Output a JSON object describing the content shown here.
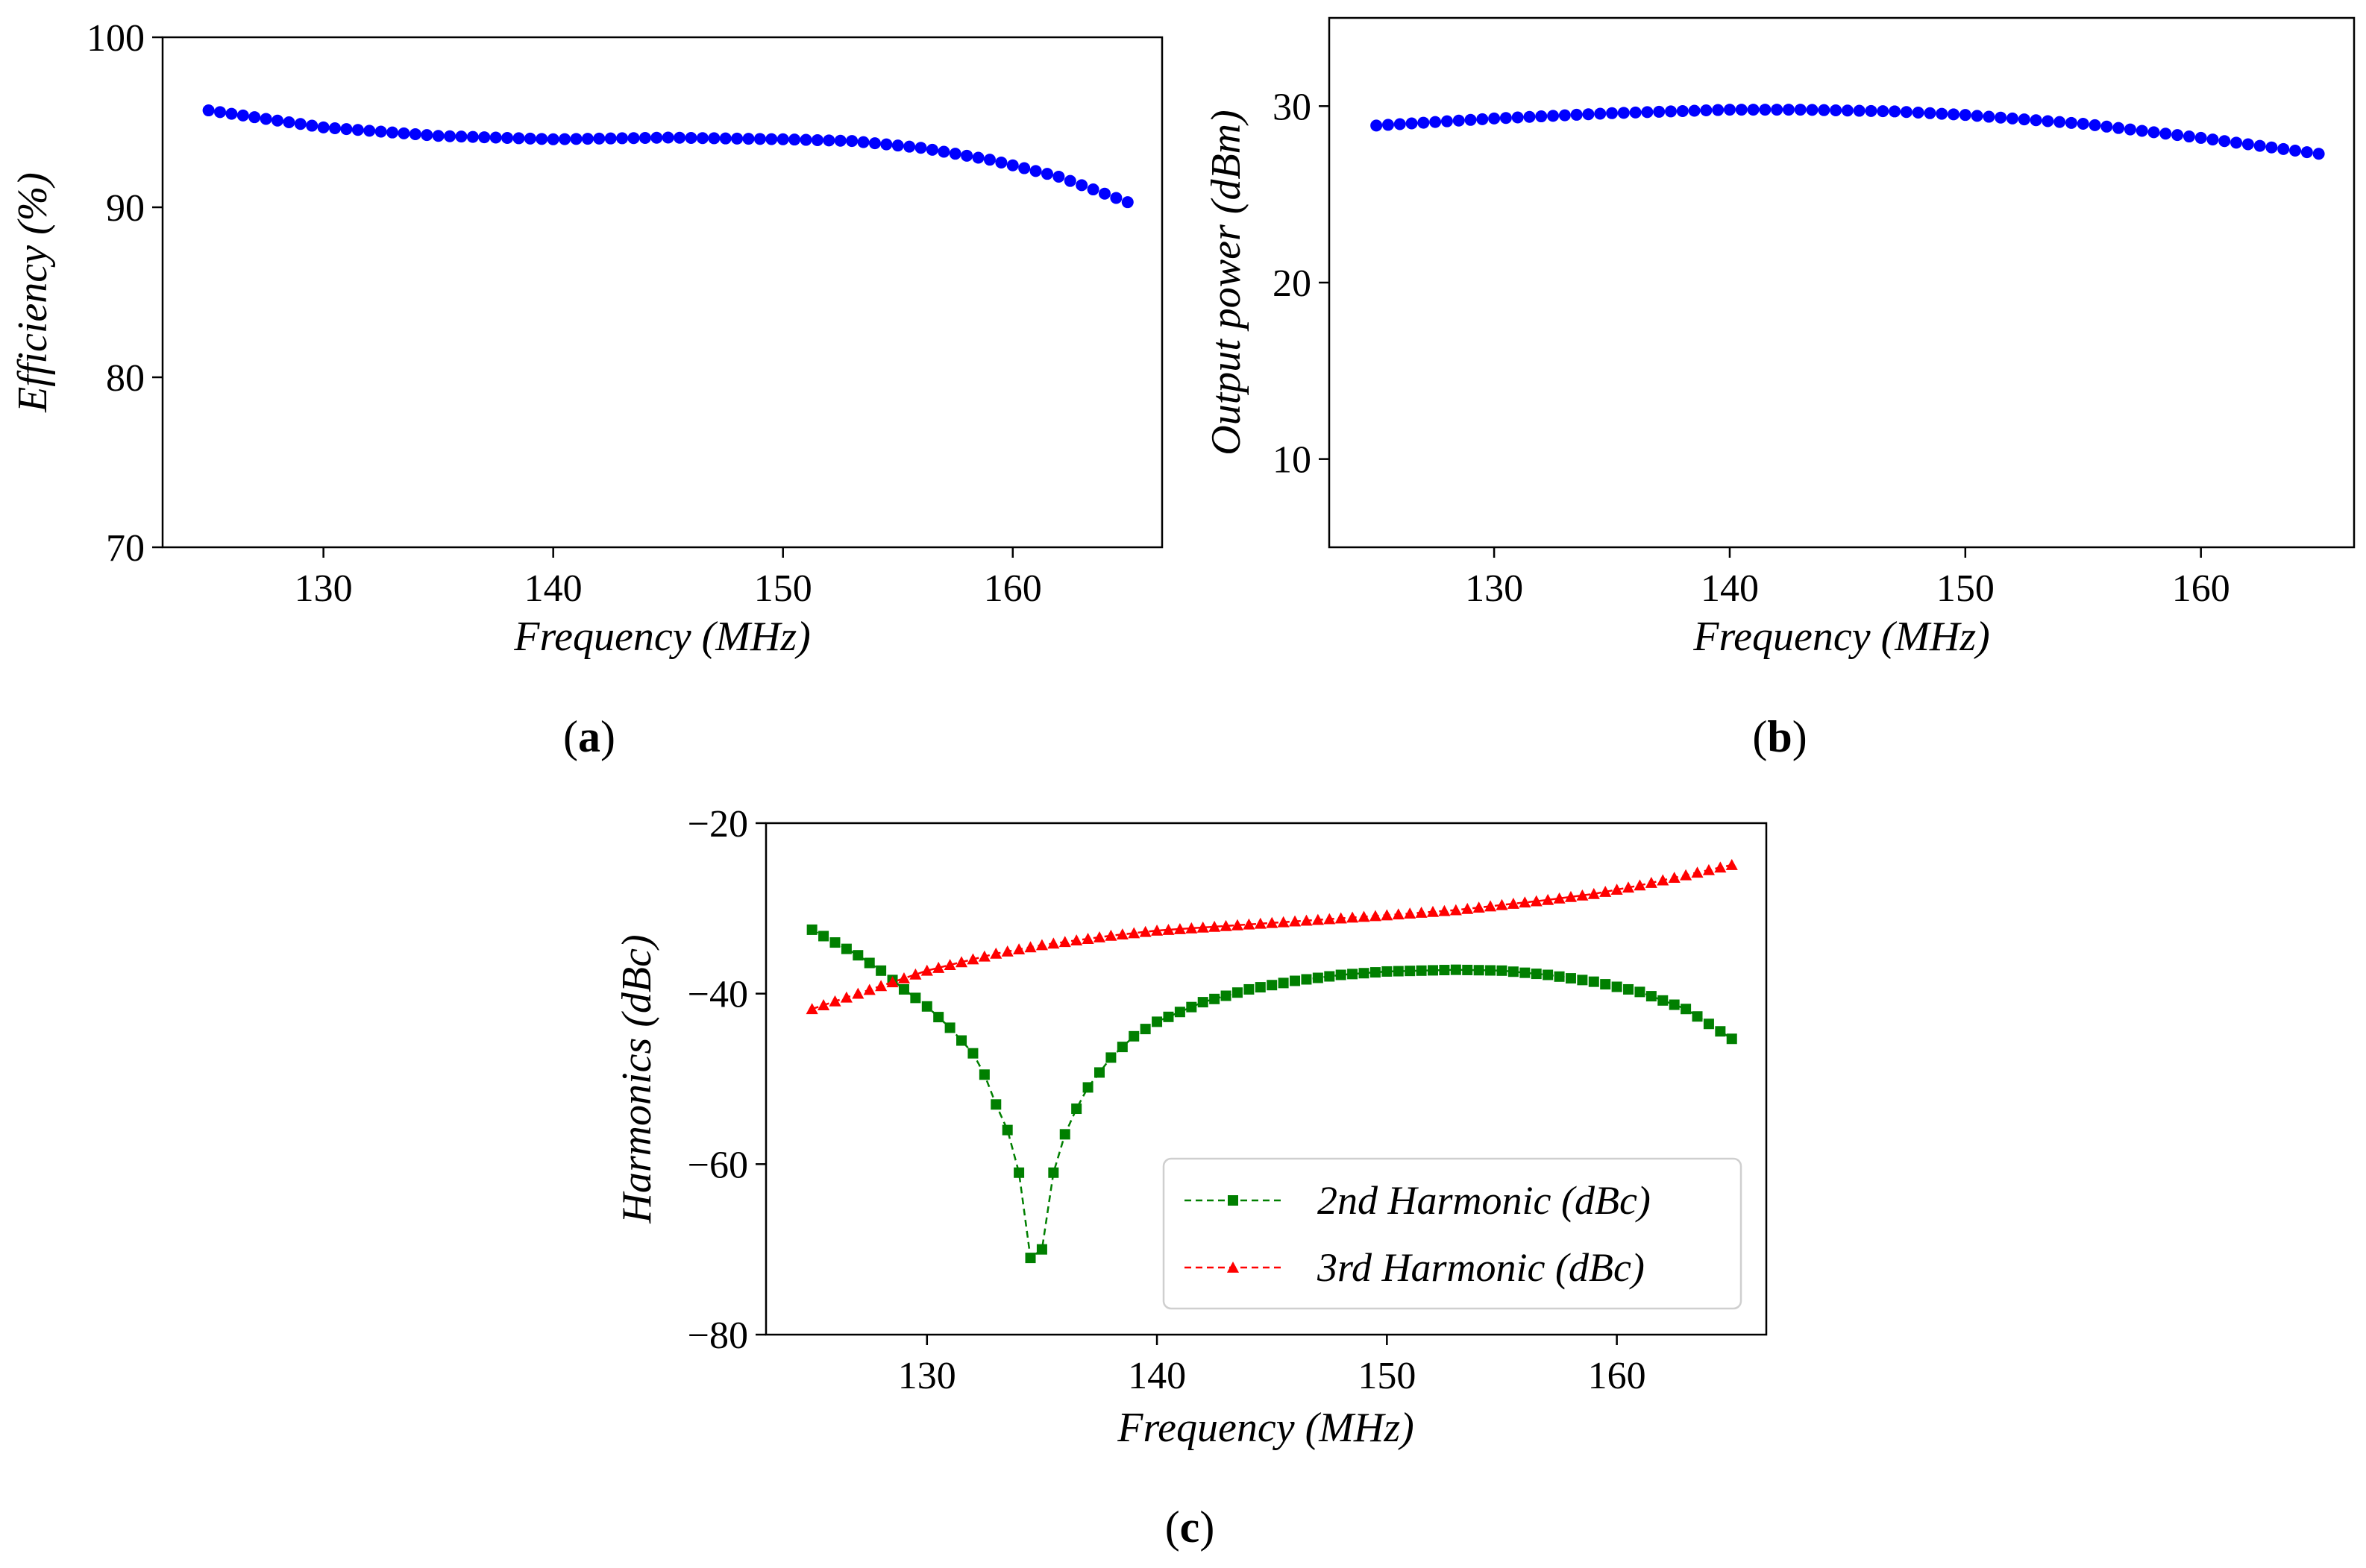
{
  "chart_data": [
    {
      "id": "a",
      "type": "scatter",
      "panel_label": "(a)",
      "xlabel": "Frequency (MHz)",
      "ylabel": "Efficiency (%)",
      "xlim": [
        123,
        166.5
      ],
      "ylim": [
        70,
        100
      ],
      "xticks": [
        130,
        140,
        150,
        160
      ],
      "yticks": [
        70,
        80,
        90,
        100
      ],
      "series": [
        {
          "name": "Efficiency",
          "color": "#0000ff",
          "marker": "circle",
          "x_range": [
            125,
            165,
            0.5
          ],
          "anchors": [
            [
              125,
              95.7
            ],
            [
              127,
              95.3
            ],
            [
              130,
              94.7
            ],
            [
              135,
              94.2
            ],
            [
              140,
              94.0
            ],
            [
              145,
              94.1
            ],
            [
              150,
              94.0
            ],
            [
              153,
              93.9
            ],
            [
              156,
              93.5
            ],
            [
              159,
              92.8
            ],
            [
              162,
              91.8
            ],
            [
              165,
              90.3
            ]
          ]
        }
      ]
    },
    {
      "id": "b",
      "type": "scatter",
      "panel_label": "(b)",
      "xlabel": "Frequency (MHz)",
      "ylabel": "Output power (dBm)",
      "xlim": [
        123,
        166.5
      ],
      "ylim": [
        5,
        35
      ],
      "xticks": [
        130,
        140,
        150,
        160
      ],
      "yticks": [
        10,
        20,
        30
      ],
      "series": [
        {
          "name": "Output power",
          "color": "#0000ff",
          "marker": "circle",
          "x_range": [
            125,
            165,
            0.5
          ],
          "anchors": [
            [
              125,
              28.9
            ],
            [
              130,
              29.3
            ],
            [
              135,
              29.6
            ],
            [
              140,
              29.8
            ],
            [
              143,
              29.8
            ],
            [
              147,
              29.7
            ],
            [
              150,
              29.5
            ],
            [
              155,
              29.0
            ],
            [
              160,
              28.2
            ],
            [
              165,
              27.3
            ]
          ]
        }
      ]
    },
    {
      "id": "c",
      "type": "line",
      "panel_label": "(c)",
      "xlabel": "Frequency (MHz)",
      "ylabel": "Harmonics (dBc)",
      "xlim": [
        123,
        166.5
      ],
      "ylim": [
        -80,
        -20
      ],
      "xticks": [
        130,
        140,
        150,
        160
      ],
      "yticks": [
        -20,
        -40,
        -60,
        -80
      ],
      "legend_position": "lower-right",
      "series": [
        {
          "name": "2nd Harmonic (dBc)",
          "color": "#007f00",
          "marker": "square",
          "linestyle": "dashed",
          "x_range": [
            125,
            165,
            0.5
          ],
          "anchors": [
            [
              125,
              -32.5
            ],
            [
              126,
              -34.0
            ],
            [
              127,
              -35.5
            ],
            [
              128,
              -37.3
            ],
            [
              129,
              -39.5
            ],
            [
              130,
              -41.5
            ],
            [
              131,
              -44.0
            ],
            [
              132,
              -47.0
            ],
            [
              132.5,
              -49.5
            ],
            [
              133,
              -53.0
            ],
            [
              133.5,
              -56.0
            ],
            [
              134,
              -61.0
            ],
            [
              134.5,
              -71.0
            ],
            [
              135,
              -70.0
            ],
            [
              135.5,
              -61.0
            ],
            [
              136,
              -56.5
            ],
            [
              136.5,
              -53.5
            ],
            [
              137,
              -51.0
            ],
            [
              138,
              -47.5
            ],
            [
              139,
              -45.0
            ],
            [
              140,
              -43.3
            ],
            [
              142,
              -41.0
            ],
            [
              144,
              -39.5
            ],
            [
              146,
              -38.5
            ],
            [
              148,
              -37.8
            ],
            [
              150,
              -37.4
            ],
            [
              153,
              -37.2
            ],
            [
              155,
              -37.3
            ],
            [
              157,
              -37.8
            ],
            [
              159,
              -38.6
            ],
            [
              161,
              -39.8
            ],
            [
              163,
              -41.8
            ],
            [
              165,
              -45.3
            ]
          ]
        },
        {
          "name": "3rd Harmonic (dBc)",
          "color": "#ff0000",
          "marker": "triangle",
          "linestyle": "dashed",
          "x_range": [
            125,
            165,
            0.5
          ],
          "anchors": [
            [
              125,
              -41.8
            ],
            [
              127,
              -40.0
            ],
            [
              130,
              -37.3
            ],
            [
              133,
              -35.3
            ],
            [
              135,
              -34.3
            ],
            [
              138,
              -33.2
            ],
            [
              140,
              -32.6
            ],
            [
              145,
              -31.7
            ],
            [
              150,
              -30.8
            ],
            [
              153,
              -30.2
            ],
            [
              155,
              -29.6
            ],
            [
              157,
              -29.0
            ],
            [
              159,
              -28.3
            ],
            [
              161,
              -27.3
            ],
            [
              163,
              -26.1
            ],
            [
              165,
              -24.9
            ]
          ]
        }
      ]
    }
  ]
}
